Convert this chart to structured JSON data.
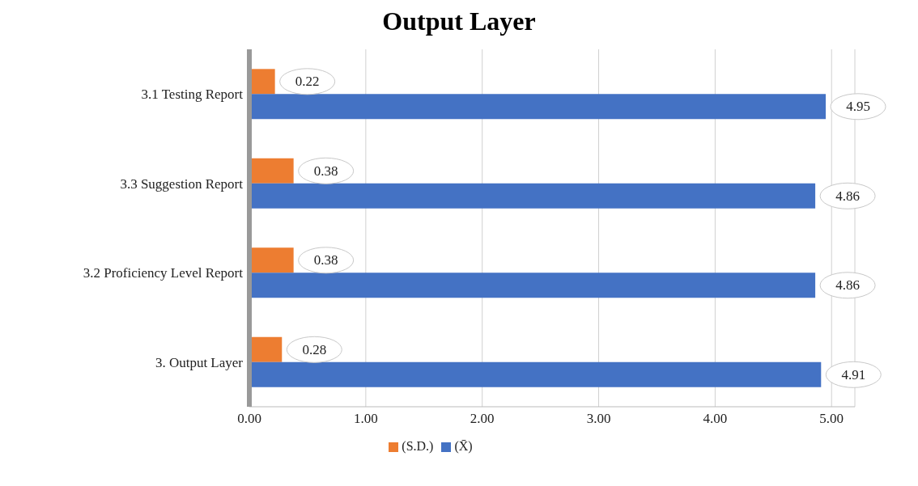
{
  "chart_data": {
    "type": "bar",
    "orientation": "horizontal",
    "title": "Output Layer",
    "categories": [
      "3.1 Testing Report",
      "3.3 Suggestion Report",
      "3.2 Proficiency Level Report",
      "3. Output Layer"
    ],
    "series": [
      {
        "name": "(S.D.)",
        "color": "#ed7d31",
        "values": [
          0.22,
          0.38,
          0.38,
          0.28
        ]
      },
      {
        "name": "(X̄)",
        "color": "#4472c4",
        "values": [
          4.95,
          4.86,
          4.86,
          4.91
        ]
      }
    ],
    "xlim": [
      0,
      5.2
    ],
    "xticks": [
      {
        "value": 0,
        "label": "0.00"
      },
      {
        "value": 1,
        "label": "1.00"
      },
      {
        "value": 2,
        "label": "2.00"
      },
      {
        "value": 3,
        "label": "3.00"
      },
      {
        "value": 4,
        "label": "4.00"
      },
      {
        "value": 5,
        "label": "5.00"
      }
    ],
    "grid": "x",
    "legend": "bottom",
    "data_labels": true
  }
}
